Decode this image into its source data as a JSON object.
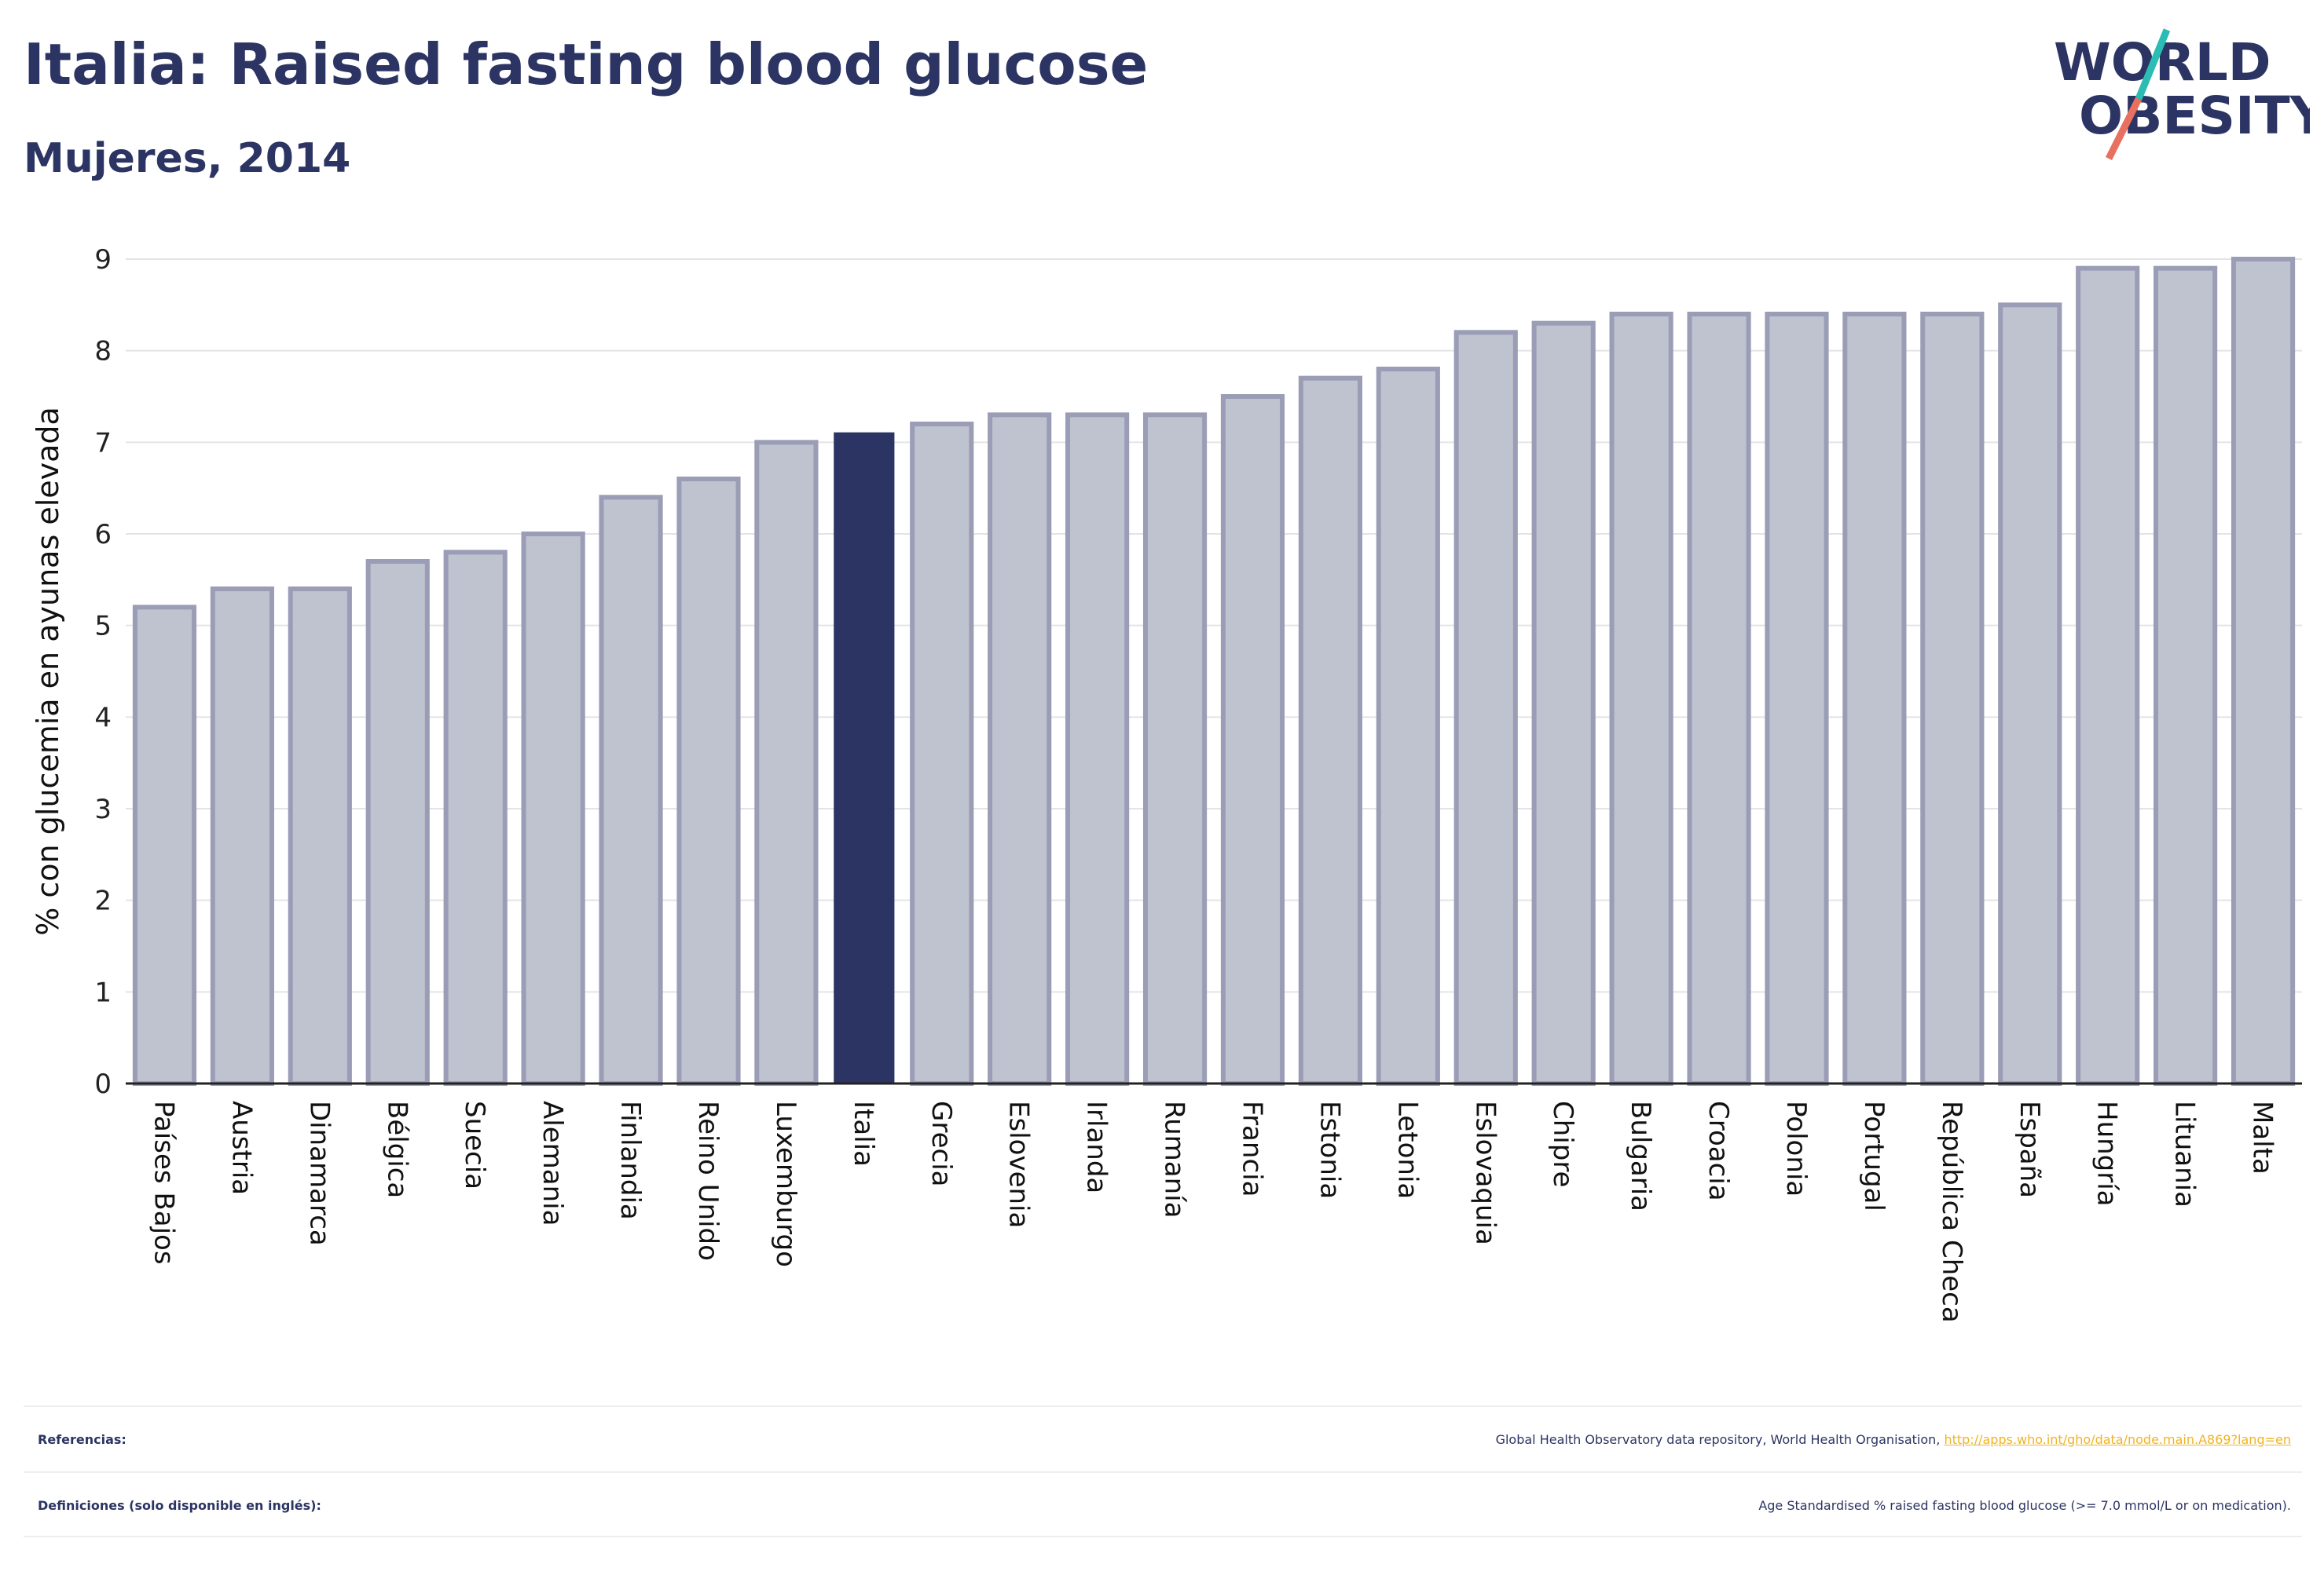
{
  "header": {
    "title": "Italia: Raised fasting blood glucose",
    "subtitle": "Mujeres, 2014"
  },
  "logo": {
    "line1": "WORLD",
    "line2": "OBESITY",
    "colors": {
      "text": "#2b3462",
      "slash_teal": "#2bbcb3",
      "slash_coral": "#e8705f"
    }
  },
  "chart_data": {
    "type": "bar",
    "ylabel": "% con glucemia en ayunas elevada",
    "xlabel": "",
    "ylim": [
      0,
      9
    ],
    "yticks": [
      0,
      1,
      2,
      3,
      4,
      5,
      6,
      7,
      8,
      9
    ],
    "grid": true,
    "categories": [
      "Países Bajos",
      "Austria",
      "Dinamarca",
      "Bélgica",
      "Suecia",
      "Alemania",
      "Finlandia",
      "Reino Unido",
      "Luxemburgo",
      "Italia",
      "Grecia",
      "Eslovenia",
      "Irlanda",
      "Rumanía",
      "Francia",
      "Estonia",
      "Letonia",
      "Eslovaquia",
      "Chipre",
      "Bulgaria",
      "Croacia",
      "Polonia",
      "Portugal",
      "República Checa",
      "España",
      "Hungría",
      "Lituania",
      "Malta"
    ],
    "values": [
      5.2,
      5.4,
      5.4,
      5.7,
      5.8,
      6.0,
      6.4,
      6.6,
      7.0,
      7.1,
      7.2,
      7.3,
      7.3,
      7.3,
      7.5,
      7.7,
      7.8,
      8.2,
      8.3,
      8.4,
      8.4,
      8.4,
      8.4,
      8.4,
      8.5,
      8.9,
      8.9,
      9.0
    ],
    "highlight": "Italia",
    "colors": {
      "bar": "#bfc2cf",
      "bar_border": "#9a9db5",
      "highlight": "#2b3462",
      "grid": "#e4e4e8"
    }
  },
  "footer": {
    "references_label": "Referencias:",
    "references_text": "Global Health Observatory data repository, World Health Organisation, ",
    "references_link": "http://apps.who.int/gho/data/node.main.A869?lang=en",
    "definitions_label": "Definiciones (solo disponible en inglés):",
    "definitions_text": "Age Standardised % raised fasting blood glucose (>= 7.0 mmol/L or on medication)."
  }
}
